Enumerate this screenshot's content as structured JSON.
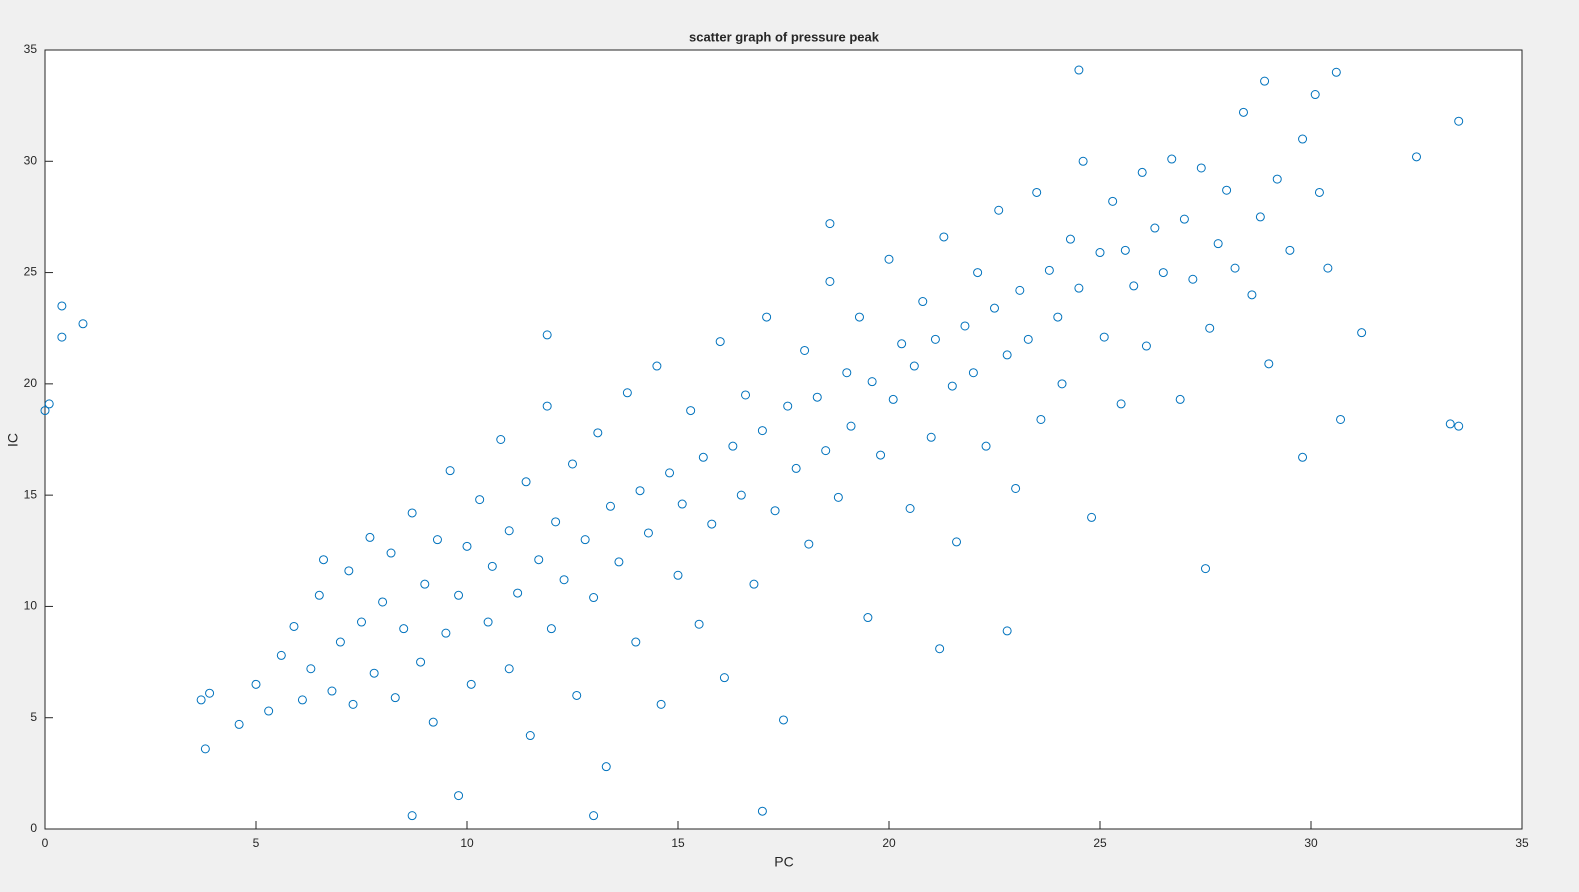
{
  "chart_data": {
    "type": "scatter",
    "title": "scatter graph of pressure peak",
    "x_label": "PC",
    "y_label": "IC",
    "color": "#0072bd",
    "xlim": [
      0,
      35
    ],
    "ylim": [
      0,
      35
    ],
    "xticks": [
      0,
      5,
      10,
      15,
      20,
      25,
      30,
      35
    ],
    "yticks": [
      0,
      5,
      10,
      15,
      20,
      25,
      30,
      35
    ],
    "x": [
      0.0,
      0.1,
      0.4,
      0.4,
      0.9,
      3.7,
      3.9,
      3.8,
      4.6,
      8.7,
      24.5,
      30.6,
      28.9,
      30.1,
      32.5,
      33.5,
      33.3,
      33.5,
      31.2,
      30.7,
      29.8,
      27.5,
      22.8,
      21.2,
      17.0,
      13.0,
      9.8,
      18.6,
      11.9,
      5.0,
      5.3,
      5.6,
      5.9,
      6.1,
      6.3,
      6.5,
      6.6,
      6.8,
      7.0,
      7.2,
      7.3,
      7.5,
      7.7,
      7.8,
      8.0,
      8.2,
      8.3,
      8.5,
      8.7,
      8.9,
      9.0,
      9.2,
      9.3,
      9.5,
      9.6,
      9.8,
      10.0,
      10.1,
      10.3,
      10.5,
      10.6,
      10.8,
      11.0,
      11.0,
      11.2,
      11.4,
      11.5,
      11.7,
      11.9,
      12.0,
      12.1,
      12.3,
      12.5,
      12.6,
      12.8,
      13.0,
      13.1,
      13.3,
      13.4,
      13.6,
      13.8,
      14.0,
      14.1,
      14.3,
      14.5,
      14.6,
      14.8,
      15.0,
      15.1,
      15.3,
      15.5,
      15.6,
      15.8,
      16.0,
      16.1,
      16.3,
      16.5,
      16.6,
      16.8,
      17.0,
      17.1,
      17.3,
      17.5,
      17.6,
      17.8,
      18.0,
      18.1,
      18.3,
      18.5,
      18.6,
      18.8,
      19.0,
      19.1,
      19.3,
      19.5,
      19.6,
      19.8,
      20.0,
      20.1,
      20.3,
      20.5,
      20.6,
      20.8,
      21.0,
      21.1,
      21.3,
      21.5,
      21.6,
      21.8,
      22.0,
      22.1,
      22.3,
      22.5,
      22.6,
      22.8,
      23.0,
      23.1,
      23.3,
      23.5,
      23.6,
      23.8,
      24.0,
      24.1,
      24.3,
      24.5,
      24.6,
      24.8,
      25.0,
      25.1,
      25.3,
      25.5,
      25.6,
      25.8,
      26.0,
      26.1,
      26.3,
      26.5,
      26.7,
      26.9,
      27.0,
      27.2,
      27.4,
      27.6,
      27.8,
      28.0,
      28.2,
      28.4,
      28.6,
      28.8,
      29.0,
      29.2,
      29.5,
      29.8,
      30.2,
      30.4
    ],
    "values": [
      18.8,
      19.1,
      23.5,
      22.1,
      22.7,
      5.8,
      6.1,
      3.6,
      4.7,
      0.6,
      34.1,
      34.0,
      33.6,
      33.0,
      30.2,
      31.8,
      18.2,
      18.1,
      22.3,
      18.4,
      16.7,
      11.7,
      8.9,
      8.1,
      0.8,
      0.6,
      1.5,
      27.2,
      22.2,
      6.5,
      5.3,
      7.8,
      9.1,
      5.8,
      7.2,
      10.5,
      12.1,
      6.2,
      8.4,
      11.6,
      5.6,
      9.3,
      13.1,
      7.0,
      10.2,
      12.4,
      5.9,
      9.0,
      14.2,
      7.5,
      11.0,
      4.8,
      13.0,
      8.8,
      16.1,
      10.5,
      12.7,
      6.5,
      14.8,
      9.3,
      11.8,
      17.5,
      7.2,
      13.4,
      10.6,
      15.6,
      4.2,
      12.1,
      19.0,
      9.0,
      13.8,
      11.2,
      16.4,
      6.0,
      13.0,
      10.4,
      17.8,
      2.8,
      14.5,
      12.0,
      19.6,
      8.4,
      15.2,
      13.3,
      20.8,
      5.6,
      16.0,
      11.4,
      14.6,
      18.8,
      9.2,
      16.7,
      13.7,
      21.9,
      6.8,
      17.2,
      15.0,
      19.5,
      11.0,
      17.9,
      23.0,
      14.3,
      4.9,
      19.0,
      16.2,
      21.5,
      12.8,
      19.4,
      17.0,
      24.6,
      14.9,
      20.5,
      18.1,
      23.0,
      9.5,
      20.1,
      16.8,
      25.6,
      19.3,
      21.8,
      14.4,
      20.8,
      23.7,
      17.6,
      22.0,
      26.6,
      19.9,
      12.9,
      22.6,
      20.5,
      25.0,
      17.2,
      23.4,
      27.8,
      21.3,
      15.3,
      24.2,
      22.0,
      28.6,
      18.4,
      25.1,
      23.0,
      20.0,
      26.5,
      24.3,
      30.0,
      14.0,
      25.9,
      22.1,
      28.2,
      19.1,
      26.0,
      24.4,
      29.5,
      21.7,
      27.0,
      25.0,
      30.1,
      19.3,
      27.4,
      24.7,
      29.7,
      22.5,
      26.3,
      28.7,
      25.2,
      32.2,
      24.0,
      27.5,
      20.9,
      29.2,
      26.0,
      31.0,
      28.6,
      25.2
    ]
  }
}
